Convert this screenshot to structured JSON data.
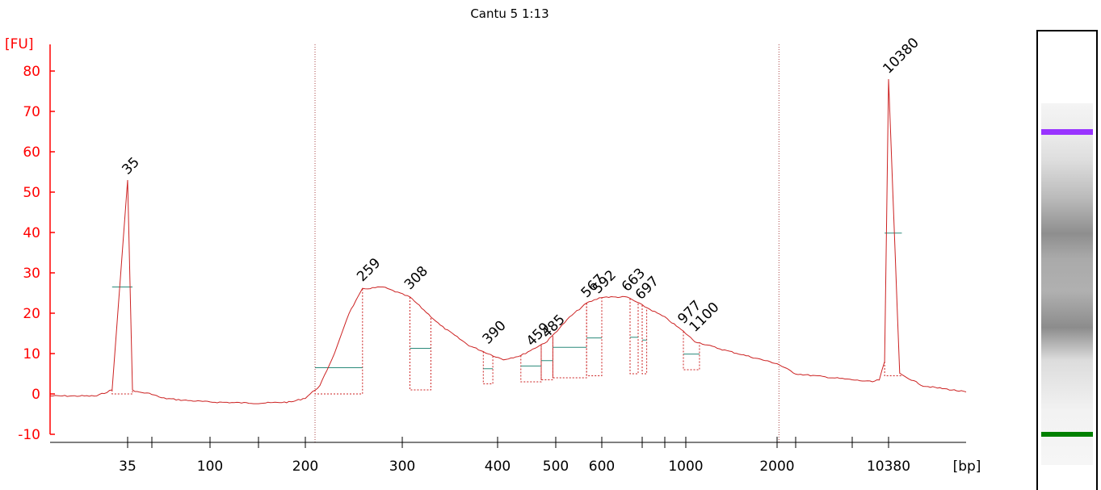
{
  "chart_data": {
    "type": "line",
    "title": "Cantu 5 1:13",
    "ylabel": "[FU]",
    "xlabel": "[bp]",
    "ylim": [
      -10,
      85
    ],
    "yticks": [
      "-10",
      "0",
      "10",
      "20",
      "30",
      "40",
      "50",
      "60",
      "70",
      "80"
    ],
    "x_scale": "ladder (non-linear bp)",
    "xticks": [
      "35",
      "100",
      "200",
      "300",
      "400",
      "500",
      "600",
      "1000",
      "2000",
      "10380"
    ],
    "markers": [
      {
        "label": "35",
        "x_bp": 35,
        "y": 53,
        "color": "#008000"
      },
      {
        "label": "10380",
        "x_bp": 10380,
        "y": 78,
        "color": "#9933ff"
      }
    ],
    "peaks": [
      {
        "label": "259",
        "x_bp": 259,
        "y": 26.5
      },
      {
        "label": "308",
        "x_bp": 308,
        "y": 24.5
      },
      {
        "label": "390",
        "x_bp": 390,
        "y": 11
      },
      {
        "label": "459",
        "x_bp": 459,
        "y": 10.5
      },
      {
        "label": "485",
        "x_bp": 485,
        "y": 12.5
      },
      {
        "label": "567",
        "x_bp": 567,
        "y": 22.5
      },
      {
        "label": "592",
        "x_bp": 592,
        "y": 23.5
      },
      {
        "label": "663",
        "x_bp": 663,
        "y": 24
      },
      {
        "label": "697",
        "x_bp": 697,
        "y": 22
      },
      {
        "label": "977",
        "x_bp": 977,
        "y": 16
      },
      {
        "label": "1100",
        "x_bp": 1100,
        "y": 14
      }
    ],
    "trace": {
      "x_bp": [
        30,
        33,
        34,
        35,
        36,
        37,
        40,
        50,
        70,
        100,
        150,
        185,
        200,
        215,
        230,
        245,
        259,
        280,
        308,
        340,
        370,
        390,
        410,
        440,
        485,
        530,
        567,
        600,
        663,
        700,
        800,
        977,
        1100,
        1400,
        2000,
        3000,
        5000,
        8000,
        9000,
        9800,
        10380,
        10900,
        12000,
        14000
      ],
      "fu": [
        -0.5,
        -0.5,
        1,
        53,
        1,
        0.5,
        0,
        -1,
        -1.5,
        -2,
        -2.3,
        -2,
        -1,
        2,
        10,
        20,
        26,
        26.5,
        24,
        17,
        12,
        10,
        8.5,
        9.5,
        13,
        19,
        22.5,
        24,
        24,
        22,
        19,
        15.5,
        13,
        11,
        7.5,
        5,
        3.5,
        3,
        3.5,
        8,
        78,
        5,
        2,
        0.5
      ]
    },
    "regions": [
      {
        "from_bp": 210,
        "to_bp": 2100
      }
    ],
    "gel": {
      "bands": [
        {
          "name": "upper marker",
          "color": "#9933ff"
        },
        {
          "name": "lower marker",
          "color": "#008000"
        }
      ],
      "accent": "#ff0000"
    },
    "grid": false,
    "legend": "none"
  }
}
